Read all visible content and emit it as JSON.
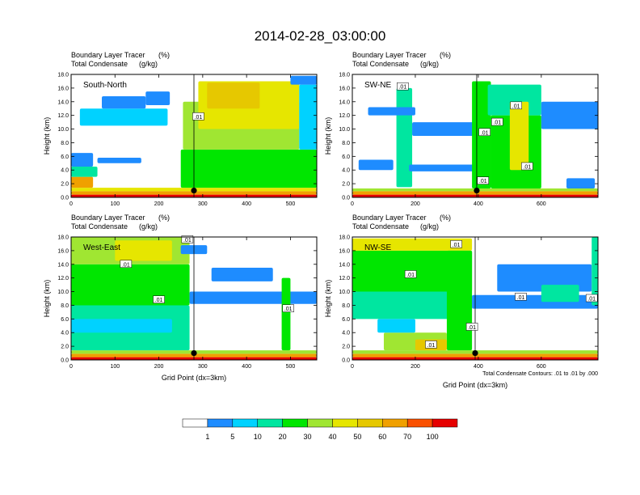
{
  "title": "2014-02-28_03:00:00",
  "colors": {
    "scale": [
      "#ffffff",
      "#1e8cff",
      "#00d2ff",
      "#00e6a0",
      "#00e600",
      "#a0e632",
      "#e6e600",
      "#e6c800",
      "#f0a000",
      "#fa5000",
      "#e60000"
    ],
    "contour": "#000000",
    "axis": "#000000"
  },
  "chart_data": [
    {
      "type": "heatmap",
      "panel_label": "South-North",
      "subtitle_line1": "Boundary Layer Tracer",
      "subtitle_unit1": "(%)",
      "subtitle_line2": "Total Condensate",
      "subtitle_unit2": "(g/kg)",
      "ylabel": "Height (km)",
      "xlabel": "",
      "xlim": [
        0,
        560
      ],
      "ylim": [
        0,
        18
      ],
      "xticks": [
        0,
        100,
        200,
        300,
        400,
        500
      ],
      "yticks": [
        "0.0",
        "2.0",
        "4.0",
        "6.0",
        "8.0",
        "10.0",
        "12.0",
        "14.0",
        "16.0",
        "18.0"
      ],
      "marker_x": 280,
      "contour_labels": [
        {
          "x": 290,
          "y": 11.8,
          "text": ".01"
        }
      ],
      "bands": [
        {
          "x0": 0,
          "x1": 560,
          "y0": 0,
          "y1": 0.4,
          "level": 10
        },
        {
          "x0": 0,
          "x1": 560,
          "y0": 0.4,
          "y1": 0.9,
          "level": 8
        },
        {
          "x0": 0,
          "x1": 560,
          "y0": 0.9,
          "y1": 1.4,
          "level": 6
        },
        {
          "x0": 0,
          "x1": 50,
          "y0": 1.4,
          "y1": 3.0,
          "level": 8
        },
        {
          "x0": 0,
          "x1": 60,
          "y0": 3.0,
          "y1": 4.5,
          "level": 3
        },
        {
          "x0": 0,
          "x1": 50,
          "y0": 4.5,
          "y1": 6.5,
          "level": 1
        },
        {
          "x0": 60,
          "x1": 160,
          "y0": 5.0,
          "y1": 5.8,
          "level": 1
        },
        {
          "x0": 20,
          "x1": 220,
          "y0": 10.5,
          "y1": 13.0,
          "level": 2
        },
        {
          "x0": 70,
          "x1": 170,
          "y0": 13.0,
          "y1": 14.8,
          "level": 1
        },
        {
          "x0": 170,
          "x1": 225,
          "y0": 13.5,
          "y1": 15.5,
          "level": 1
        },
        {
          "x0": 250,
          "x1": 560,
          "y0": 1.4,
          "y1": 7.0,
          "level": 4
        },
        {
          "x0": 255,
          "x1": 520,
          "y0": 7.0,
          "y1": 14.0,
          "level": 5
        },
        {
          "x0": 290,
          "x1": 520,
          "y0": 10.0,
          "y1": 17.0,
          "level": 6
        },
        {
          "x0": 310,
          "x1": 430,
          "y0": 13.0,
          "y1": 16.8,
          "level": 7
        },
        {
          "x0": 520,
          "x1": 560,
          "y0": 7.0,
          "y1": 16.5,
          "level": 2
        },
        {
          "x0": 500,
          "x1": 560,
          "y0": 16.5,
          "y1": 17.8,
          "level": 1
        }
      ]
    },
    {
      "type": "heatmap",
      "panel_label": "SW-NE",
      "subtitle_line1": "Boundary Layer Tracer",
      "subtitle_unit1": "(%)",
      "subtitle_line2": "Total Condensate",
      "subtitle_unit2": "(g/kg)",
      "ylabel": "Height (km)",
      "xlabel": "",
      "xlim": [
        0,
        780
      ],
      "ylim": [
        0,
        18
      ],
      "xticks": [
        0,
        200,
        400,
        600
      ],
      "yticks": [
        "0.0",
        "2.0",
        "4.0",
        "6.0",
        "8.0",
        "10.0",
        "12.0",
        "14.0",
        "16.0",
        "18.0"
      ],
      "marker_x": 395,
      "contour_labels": [
        {
          "x": 160,
          "y": 16.2,
          "text": ".01"
        },
        {
          "x": 420,
          "y": 9.5,
          "text": ".01"
        },
        {
          "x": 520,
          "y": 13.4,
          "text": ".01"
        },
        {
          "x": 460,
          "y": 11.0,
          "text": ".01"
        },
        {
          "x": 555,
          "y": 4.5,
          "text": ".01"
        },
        {
          "x": 415,
          "y": 2.4,
          "text": ".01"
        }
      ],
      "bands": [
        {
          "x0": 0,
          "x1": 780,
          "y0": 0,
          "y1": 0.4,
          "level": 10
        },
        {
          "x0": 0,
          "x1": 780,
          "y0": 0.4,
          "y1": 0.9,
          "level": 8
        },
        {
          "x0": 0,
          "x1": 780,
          "y0": 0.9,
          "y1": 1.3,
          "level": 5
        },
        {
          "x0": 20,
          "x1": 130,
          "y0": 4.0,
          "y1": 5.5,
          "level": 1
        },
        {
          "x0": 140,
          "x1": 190,
          "y0": 1.5,
          "y1": 16.0,
          "level": 3
        },
        {
          "x0": 180,
          "x1": 400,
          "y0": 3.8,
          "y1": 4.8,
          "level": 1
        },
        {
          "x0": 50,
          "x1": 200,
          "y0": 12.0,
          "y1": 13.2,
          "level": 1
        },
        {
          "x0": 190,
          "x1": 390,
          "y0": 9.0,
          "y1": 11.0,
          "level": 1
        },
        {
          "x0": 380,
          "x1": 440,
          "y0": 1.3,
          "y1": 17.0,
          "level": 4
        },
        {
          "x0": 440,
          "x1": 600,
          "y0": 1.3,
          "y1": 12.0,
          "level": 4
        },
        {
          "x0": 430,
          "x1": 600,
          "y0": 12.0,
          "y1": 16.5,
          "level": 3
        },
        {
          "x0": 500,
          "x1": 560,
          "y0": 4.0,
          "y1": 14.0,
          "level": 6
        },
        {
          "x0": 600,
          "x1": 780,
          "y0": 10.0,
          "y1": 14.0,
          "level": 1
        },
        {
          "x0": 680,
          "x1": 770,
          "y0": 1.3,
          "y1": 2.8,
          "level": 1
        }
      ]
    },
    {
      "type": "heatmap",
      "panel_label": "West-East",
      "subtitle_line1": "Boundary Layer Tracer",
      "subtitle_unit1": "(%)",
      "subtitle_line2": "Total Condensate",
      "subtitle_unit2": "(g/kg)",
      "ylabel": "Height (km)",
      "xlabel": "Grid Point (dx=3km)",
      "xlim": [
        0,
        560
      ],
      "ylim": [
        0,
        18
      ],
      "xticks": [
        0,
        100,
        200,
        300,
        400,
        500
      ],
      "yticks": [
        "0.0",
        "2.0",
        "4.0",
        "6.0",
        "8.0",
        "10.0",
        "12.0",
        "14.0",
        "16.0",
        "18.0"
      ],
      "marker_x": 280,
      "contour_labels": [
        {
          "x": 265,
          "y": 17.6,
          "text": ".01"
        },
        {
          "x": 125,
          "y": 14.0,
          "text": ".01"
        },
        {
          "x": 200,
          "y": 8.8,
          "text": ".01"
        },
        {
          "x": 495,
          "y": 7.5,
          "text": ".01"
        }
      ],
      "bands": [
        {
          "x0": 0,
          "x1": 560,
          "y0": 0,
          "y1": 0.4,
          "level": 10
        },
        {
          "x0": 0,
          "x1": 560,
          "y0": 0.4,
          "y1": 0.9,
          "level": 8
        },
        {
          "x0": 0,
          "x1": 560,
          "y0": 0.9,
          "y1": 1.4,
          "level": 5
        },
        {
          "x0": 0,
          "x1": 270,
          "y0": 1.4,
          "y1": 8.0,
          "level": 3
        },
        {
          "x0": 0,
          "x1": 270,
          "y0": 8.0,
          "y1": 14.0,
          "level": 4
        },
        {
          "x0": 0,
          "x1": 270,
          "y0": 14.0,
          "y1": 18.0,
          "level": 5
        },
        {
          "x0": 100,
          "x1": 230,
          "y0": 14.5,
          "y1": 17.5,
          "level": 6
        },
        {
          "x0": 270,
          "x1": 560,
          "y0": 8.2,
          "y1": 10.0,
          "level": 1
        },
        {
          "x0": 320,
          "x1": 460,
          "y0": 11.5,
          "y1": 13.5,
          "level": 1
        },
        {
          "x0": 250,
          "x1": 310,
          "y0": 15.5,
          "y1": 16.8,
          "level": 1
        },
        {
          "x0": 480,
          "x1": 500,
          "y0": 1.4,
          "y1": 12.0,
          "level": 4
        },
        {
          "x0": 0,
          "x1": 230,
          "y0": 4.0,
          "y1": 6.0,
          "level": 2
        }
      ]
    },
    {
      "type": "heatmap",
      "panel_label": "NW-SE",
      "subtitle_line1": "Boundary Layer Tracer",
      "subtitle_unit1": "(%)",
      "subtitle_line2": "Total Condensate",
      "subtitle_unit2": "(g/kg)",
      "ylabel": "Height (km)",
      "xlabel": "Grid Point (dx=3km)",
      "note": "Total Condensate Contours: .01 to .01 by .000",
      "xlim": [
        0,
        780
      ],
      "ylim": [
        0,
        18
      ],
      "xticks": [
        0,
        200,
        400,
        600
      ],
      "yticks": [
        "0.0",
        "2.0",
        "4.0",
        "6.0",
        "8.0",
        "10.0",
        "12.0",
        "14.0",
        "16.0",
        "18.0"
      ],
      "marker_x": 390,
      "contour_labels": [
        {
          "x": 330,
          "y": 16.9,
          "text": ".01"
        },
        {
          "x": 185,
          "y": 12.5,
          "text": ".01"
        },
        {
          "x": 535,
          "y": 9.2,
          "text": ".01"
        },
        {
          "x": 380,
          "y": 4.8,
          "text": ".01"
        },
        {
          "x": 250,
          "y": 2.2,
          "text": ".01"
        },
        {
          "x": 760,
          "y": 9.0,
          "text": ".01"
        }
      ],
      "bands": [
        {
          "x0": 0,
          "x1": 780,
          "y0": 0,
          "y1": 0.4,
          "level": 10
        },
        {
          "x0": 0,
          "x1": 780,
          "y0": 0.4,
          "y1": 0.9,
          "level": 8
        },
        {
          "x0": 0,
          "x1": 780,
          "y0": 0.9,
          "y1": 1.4,
          "level": 5
        },
        {
          "x0": 0,
          "x1": 360,
          "y0": 6.0,
          "y1": 10.0,
          "level": 3
        },
        {
          "x0": 0,
          "x1": 380,
          "y0": 10.0,
          "y1": 16.0,
          "level": 4
        },
        {
          "x0": 0,
          "x1": 380,
          "y0": 16.0,
          "y1": 17.8,
          "level": 6
        },
        {
          "x0": 300,
          "x1": 380,
          "y0": 1.4,
          "y1": 16.0,
          "level": 4
        },
        {
          "x0": 100,
          "x1": 300,
          "y0": 1.4,
          "y1": 4.0,
          "level": 5
        },
        {
          "x0": 200,
          "x1": 300,
          "y0": 1.4,
          "y1": 3.0,
          "level": 7
        },
        {
          "x0": 380,
          "x1": 780,
          "y0": 7.5,
          "y1": 9.5,
          "level": 1
        },
        {
          "x0": 460,
          "x1": 760,
          "y0": 10.0,
          "y1": 14.0,
          "level": 1
        },
        {
          "x0": 600,
          "x1": 720,
          "y0": 8.5,
          "y1": 11.0,
          "level": 3
        },
        {
          "x0": 760,
          "x1": 780,
          "y0": 8.0,
          "y1": 18.0,
          "level": 3
        },
        {
          "x0": 80,
          "x1": 200,
          "y0": 4.0,
          "y1": 6.0,
          "level": 2
        }
      ]
    }
  ],
  "colorbar": {
    "labels": [
      "1",
      "5",
      "10",
      "20",
      "30",
      "40",
      "50",
      "60",
      "70",
      "100"
    ]
  }
}
